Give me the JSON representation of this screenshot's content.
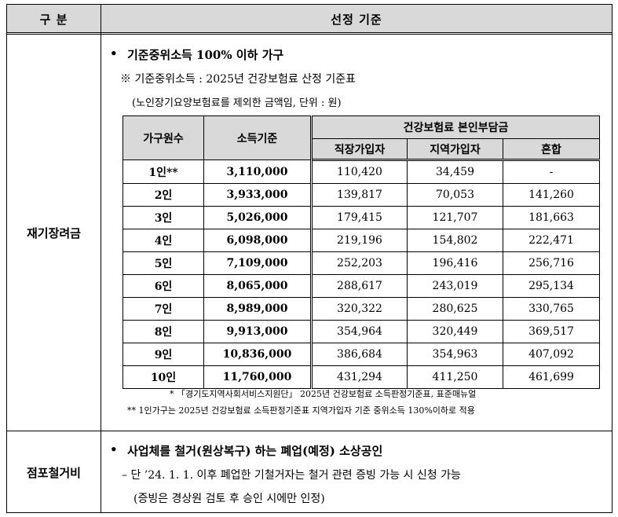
{
  "header": {
    "col1": "구 분",
    "col2": "선정 기준"
  },
  "section1": {
    "label": "재기장려금",
    "bullet": "•",
    "title": "기준중위소득 100% 이하 가구",
    "note1": "※ 기준중위소득 : 2025년 건강보험료 산정 기준표",
    "note2": "(노인장기요양보험료를 제외한 금액임, 단위 : 원)",
    "table": {
      "col_household": "가구원수",
      "col_income": "소득기준",
      "col_group": "건강보험료 본인부담금",
      "col_employee": "직장가입자",
      "col_regional": "지역가입자",
      "col_mixed": "혼합",
      "rows": [
        [
          "1인**",
          "3,110,000",
          "110,420",
          "34,459",
          "-"
        ],
        [
          "2인",
          "3,933,000",
          "139,817",
          "70,053",
          "141,260"
        ],
        [
          "3인",
          "5,026,000",
          "179,415",
          "121,707",
          "181,663"
        ],
        [
          "4인",
          "6,098,000",
          "219,196",
          "154,802",
          "222,471"
        ],
        [
          "5인",
          "7,109,000",
          "252,203",
          "196,416",
          "256,716"
        ],
        [
          "6인",
          "8,065,000",
          "288,617",
          "243,019",
          "295,134"
        ],
        [
          "7인",
          "8,989,000",
          "320,322",
          "280,625",
          "330,765"
        ],
        [
          "8인",
          "9,913,000",
          "354,964",
          "320,449",
          "369,517"
        ],
        [
          "9인",
          "10,836,000",
          "386,684",
          "354,963",
          "407,092"
        ],
        [
          "10인",
          "11,760,000",
          "431,294",
          "411,250",
          "461,699"
        ]
      ]
    },
    "foot1": "* 「경기도지역사회서비스지원단」 2025년 건강보험료 소득판정기준표, 표준매뉴얼",
    "foot2": "** 1인가구는 2025년 건강보험료 소득판정기준표 지역가입자 기준 중위소득 130%이하로 적용"
  },
  "section2": {
    "label": "점포철거비",
    "bullet": "•",
    "title": "사업체를 철거(원상복구) 하는 폐업(예정) 소상공인",
    "line1": "– 단 ’24. 1. 1. 이후 폐업한 기철거자는 철거 관련 증빙 가능 시 신청 가능",
    "line2": "(증빙은 경상원 검토 후 승인 시에만 인정)"
  }
}
